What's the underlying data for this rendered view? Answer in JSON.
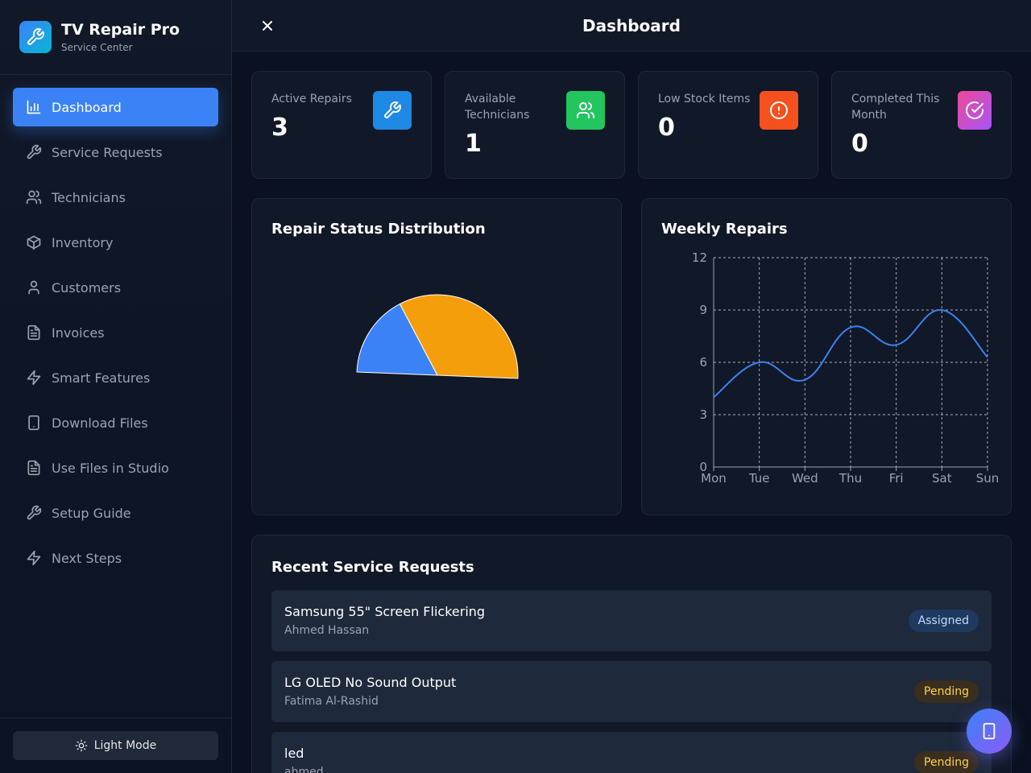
{
  "brand": {
    "title": "TV Repair Pro",
    "subtitle": "Service Center"
  },
  "header": {
    "title": "Dashboard",
    "close_icon": "close-icon"
  },
  "sidebar": {
    "items": [
      {
        "label": "Dashboard",
        "icon": "bar-chart-icon",
        "active": true
      },
      {
        "label": "Service Requests",
        "icon": "wrench-icon"
      },
      {
        "label": "Technicians",
        "icon": "users-icon"
      },
      {
        "label": "Inventory",
        "icon": "package-icon"
      },
      {
        "label": "Customers",
        "icon": "user-icon"
      },
      {
        "label": "Invoices",
        "icon": "file-text-icon"
      },
      {
        "label": "Smart Features",
        "icon": "zap-icon"
      },
      {
        "label": "Download Files",
        "icon": "smartphone-icon"
      },
      {
        "label": "Use Files in Studio",
        "icon": "file-text-icon"
      },
      {
        "label": "Setup Guide",
        "icon": "wrench-icon"
      },
      {
        "label": "Next Steps",
        "icon": "zap-icon"
      }
    ],
    "mode_toggle": "Light Mode"
  },
  "stats": [
    {
      "label": "Active Repairs",
      "value": "3",
      "icon": "wrench-icon",
      "color": "#1e88e5"
    },
    {
      "label": "Available Technicians",
      "value": "1",
      "icon": "users-icon",
      "color": "#22c55e"
    },
    {
      "label": "Low Stock Items",
      "value": "0",
      "icon": "alert-circle-icon",
      "color": "#f97316"
    },
    {
      "label": "Completed This Month",
      "value": "0",
      "icon": "check-circle-icon",
      "color": "#d946ef"
    }
  ],
  "status_chart": {
    "title": "Repair Status Distribution"
  },
  "weekly_chart": {
    "title": "Weekly Repairs"
  },
  "chart_data": [
    {
      "type": "pie",
      "title": "Repair Status Distribution",
      "slices": [
        {
          "value": 1,
          "color": "#3b82f6"
        },
        {
          "value": 2,
          "color": "#f59e0b"
        }
      ],
      "layout": "half-donut (semicircle)"
    },
    {
      "type": "line",
      "title": "Weekly Repairs",
      "categories": [
        "Mon",
        "Tue",
        "Wed",
        "Thu",
        "Fri",
        "Sat",
        "Sun"
      ],
      "series": [
        {
          "values": [
            4,
            6,
            5,
            8,
            7,
            9,
            6.3
          ],
          "color": "#3b82f6"
        }
      ],
      "yticks": [
        "0",
        "3",
        "6",
        "9",
        "12"
      ],
      "ylim": [
        0,
        12
      ],
      "grid": true
    }
  ],
  "recent": {
    "title": "Recent Service Requests",
    "rows": [
      {
        "title": "Samsung 55\" Screen Flickering",
        "customer": "Ahmed Hassan",
        "status": "Assigned"
      },
      {
        "title": "LG OLED No Sound Output",
        "customer": "Fatima Al-Rashid",
        "status": "Pending"
      },
      {
        "title": "led",
        "customer": "ahmed",
        "status": "Pending"
      }
    ]
  },
  "fab": {
    "icon": "smartphone-icon"
  }
}
